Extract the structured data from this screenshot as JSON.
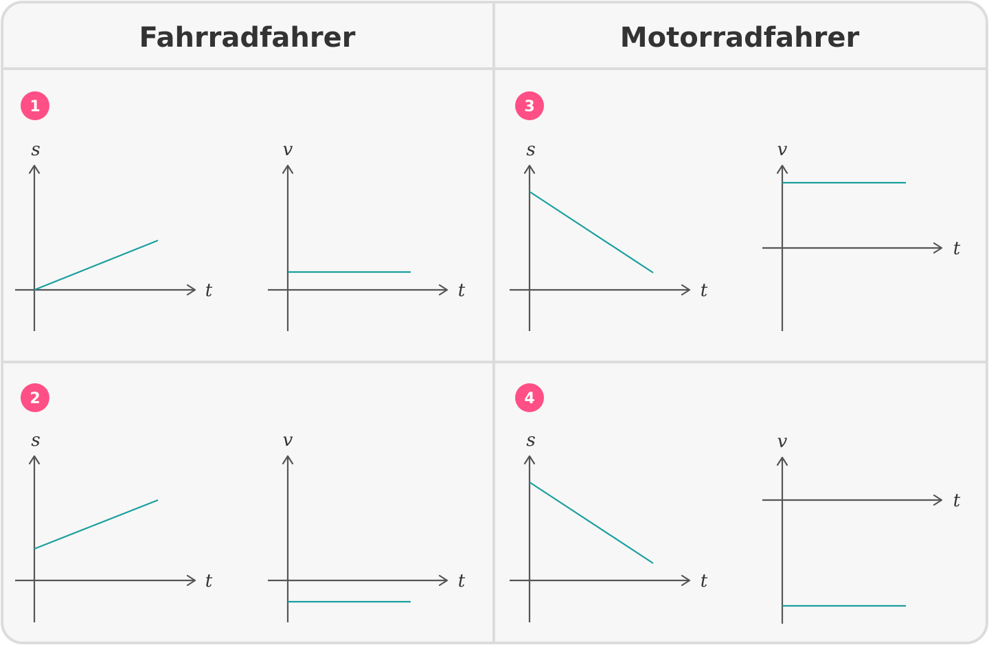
{
  "columns": [
    "Fahrradfahrer",
    "Motorradfahrer"
  ],
  "colors": {
    "background": "#f7f7f7",
    "border": "#dcdcdc",
    "axis": "#555555",
    "line": "#1a9e9e",
    "badge": "#ff4f86"
  },
  "panels": [
    {
      "number": "1",
      "s_graph": {
        "y_label": "s",
        "x_label": "t",
        "line": "rising from origin"
      },
      "v_graph": {
        "y_label": "v",
        "x_label": "t",
        "line": "constant positive"
      }
    },
    {
      "number": "2",
      "s_graph": {
        "y_label": "s",
        "x_label": "t",
        "line": "rising from positive offset"
      },
      "v_graph": {
        "y_label": "v",
        "x_label": "t",
        "line": "constant negative"
      }
    },
    {
      "number": "3",
      "s_graph": {
        "y_label": "s",
        "x_label": "t",
        "line": "falling from positive offset"
      },
      "v_graph": {
        "y_label": "v",
        "x_label": "t",
        "line": "constant positive"
      }
    },
    {
      "number": "4",
      "s_graph": {
        "y_label": "s",
        "x_label": "t",
        "line": "falling from positive offset"
      },
      "v_graph": {
        "y_label": "v",
        "x_label": "t",
        "line": "constant negative"
      }
    }
  ]
}
